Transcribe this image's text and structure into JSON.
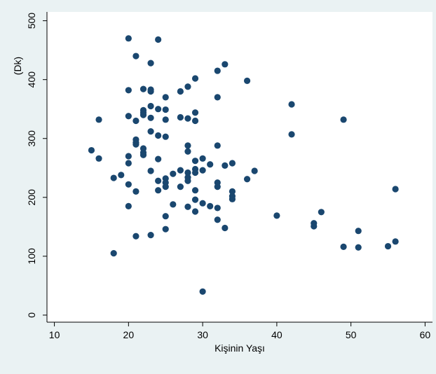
{
  "chart_data": {
    "type": "scatter",
    "title": "",
    "xlabel": "Kişinin Yaşı",
    "ylabel": "(Dk)",
    "xlim": [
      9,
      61
    ],
    "ylim": [
      -12,
      515
    ],
    "x_ticks": [
      10,
      20,
      30,
      40,
      50,
      60
    ],
    "y_ticks": [
      0,
      100,
      200,
      300,
      400,
      500
    ],
    "grid": "none",
    "legend": "none",
    "colors": {
      "outer_background": "#eaf2f3",
      "plot_background": "#ffffff",
      "marker": "#1a476f",
      "axis": "#000000"
    },
    "series": [
      {
        "values": [
          {
            "x": 15,
            "y": 280
          },
          {
            "x": 16,
            "y": 332
          },
          {
            "x": 16,
            "y": 266
          },
          {
            "x": 18,
            "y": 233
          },
          {
            "x": 18,
            "y": 105
          },
          {
            "x": 19,
            "y": 238
          },
          {
            "x": 20,
            "y": 470
          },
          {
            "x": 20,
            "y": 382
          },
          {
            "x": 20,
            "y": 338
          },
          {
            "x": 20,
            "y": 270
          },
          {
            "x": 20,
            "y": 258
          },
          {
            "x": 20,
            "y": 222
          },
          {
            "x": 20,
            "y": 185
          },
          {
            "x": 21,
            "y": 440
          },
          {
            "x": 21,
            "y": 330
          },
          {
            "x": 21,
            "y": 298
          },
          {
            "x": 21,
            "y": 293
          },
          {
            "x": 21,
            "y": 290
          },
          {
            "x": 21,
            "y": 210
          },
          {
            "x": 21,
            "y": 134
          },
          {
            "x": 22,
            "y": 384
          },
          {
            "x": 22,
            "y": 348
          },
          {
            "x": 22,
            "y": 344
          },
          {
            "x": 22,
            "y": 340
          },
          {
            "x": 22,
            "y": 283
          },
          {
            "x": 22,
            "y": 276
          },
          {
            "x": 22,
            "y": 272
          },
          {
            "x": 23,
            "y": 428
          },
          {
            "x": 23,
            "y": 383
          },
          {
            "x": 23,
            "y": 380
          },
          {
            "x": 23,
            "y": 355
          },
          {
            "x": 23,
            "y": 335
          },
          {
            "x": 23,
            "y": 312
          },
          {
            "x": 23,
            "y": 245
          },
          {
            "x": 23,
            "y": 136
          },
          {
            "x": 24,
            "y": 468
          },
          {
            "x": 24,
            "y": 350
          },
          {
            "x": 24,
            "y": 305
          },
          {
            "x": 24,
            "y": 265
          },
          {
            "x": 24,
            "y": 228
          },
          {
            "x": 24,
            "y": 212
          },
          {
            "x": 25,
            "y": 370
          },
          {
            "x": 25,
            "y": 349
          },
          {
            "x": 25,
            "y": 332
          },
          {
            "x": 25,
            "y": 303
          },
          {
            "x": 25,
            "y": 232
          },
          {
            "x": 25,
            "y": 225
          },
          {
            "x": 25,
            "y": 218
          },
          {
            "x": 25,
            "y": 168
          },
          {
            "x": 25,
            "y": 146
          },
          {
            "x": 26,
            "y": 240
          },
          {
            "x": 26,
            "y": 188
          },
          {
            "x": 27,
            "y": 380
          },
          {
            "x": 27,
            "y": 336
          },
          {
            "x": 27,
            "y": 246
          },
          {
            "x": 27,
            "y": 218
          },
          {
            "x": 28,
            "y": 388
          },
          {
            "x": 28,
            "y": 334
          },
          {
            "x": 28,
            "y": 288
          },
          {
            "x": 28,
            "y": 278
          },
          {
            "x": 28,
            "y": 242
          },
          {
            "x": 28,
            "y": 234
          },
          {
            "x": 28,
            "y": 228
          },
          {
            "x": 28,
            "y": 184
          },
          {
            "x": 29,
            "y": 402
          },
          {
            "x": 29,
            "y": 344
          },
          {
            "x": 29,
            "y": 330
          },
          {
            "x": 29,
            "y": 262
          },
          {
            "x": 29,
            "y": 248
          },
          {
            "x": 29,
            "y": 242
          },
          {
            "x": 29,
            "y": 212
          },
          {
            "x": 29,
            "y": 196
          },
          {
            "x": 29,
            "y": 176
          },
          {
            "x": 30,
            "y": 266
          },
          {
            "x": 30,
            "y": 246
          },
          {
            "x": 30,
            "y": 190
          },
          {
            "x": 30,
            "y": 40
          },
          {
            "x": 31,
            "y": 256
          },
          {
            "x": 31,
            "y": 185
          },
          {
            "x": 32,
            "y": 415
          },
          {
            "x": 32,
            "y": 370
          },
          {
            "x": 32,
            "y": 288
          },
          {
            "x": 32,
            "y": 225
          },
          {
            "x": 32,
            "y": 218
          },
          {
            "x": 32,
            "y": 182
          },
          {
            "x": 32,
            "y": 162
          },
          {
            "x": 33,
            "y": 426
          },
          {
            "x": 33,
            "y": 254
          },
          {
            "x": 33,
            "y": 148
          },
          {
            "x": 34,
            "y": 258
          },
          {
            "x": 34,
            "y": 210
          },
          {
            "x": 34,
            "y": 202
          },
          {
            "x": 34,
            "y": 197
          },
          {
            "x": 36,
            "y": 398
          },
          {
            "x": 36,
            "y": 231
          },
          {
            "x": 37,
            "y": 245
          },
          {
            "x": 40,
            "y": 169
          },
          {
            "x": 42,
            "y": 358
          },
          {
            "x": 42,
            "y": 307
          },
          {
            "x": 45,
            "y": 156
          },
          {
            "x": 45,
            "y": 151
          },
          {
            "x": 46,
            "y": 175
          },
          {
            "x": 49,
            "y": 332
          },
          {
            "x": 49,
            "y": 116
          },
          {
            "x": 51,
            "y": 143
          },
          {
            "x": 51,
            "y": 115
          },
          {
            "x": 55,
            "y": 117
          },
          {
            "x": 56,
            "y": 214
          },
          {
            "x": 56,
            "y": 125
          }
        ]
      }
    ]
  }
}
